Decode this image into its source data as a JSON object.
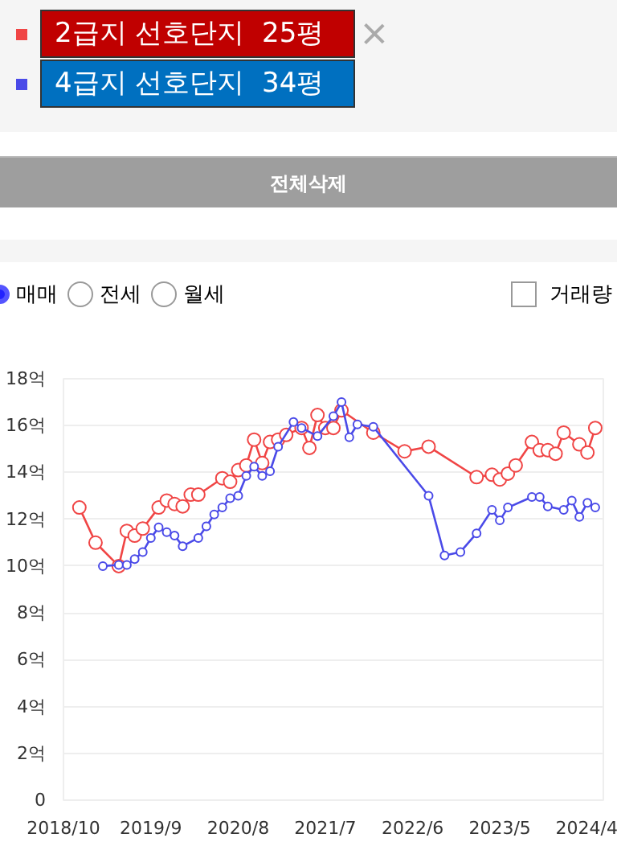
{
  "chart_data": {
    "type": "line",
    "legend": "top",
    "grid": "y",
    "marker": "circle",
    "line_style": "solid",
    "annotations": [
      "전체삭제",
      "매매",
      "전세",
      "월세",
      "거래량"
    ],
    "xlim": [
      "2018-10",
      "2024-06"
    ],
    "xticks": [
      {
        "value": "2018-10",
        "label": "2018/10"
      },
      {
        "value": "2019-09",
        "label": "2019/9"
      },
      {
        "value": "2020-08",
        "label": "2020/8"
      },
      {
        "value": "2021-07",
        "label": "2021/7"
      },
      {
        "value": "2022-06",
        "label": "2022/6"
      },
      {
        "value": "2023-05",
        "label": "2023/5"
      },
      {
        "value": "2024-04",
        "label": "2024/4"
      }
    ],
    "ylim": [
      0,
      18
    ],
    "yticks": [
      0,
      {
        "value": 2,
        "label": "2억"
      },
      {
        "value": 4,
        "label": "4억"
      },
      {
        "value": 6,
        "label": "6억"
      },
      {
        "value": 8,
        "label": "8억"
      },
      {
        "value": 10,
        "label": "10억"
      },
      {
        "value": 12,
        "label": "12억"
      },
      {
        "value": 14,
        "label": "14억"
      },
      {
        "value": 16,
        "label": "16억"
      },
      {
        "value": 18,
        "label": "18억"
      }
    ],
    "series": [
      {
        "name": "2급지 선호단지  25평",
        "color": "#f04545",
        "x": [
          "2018-12",
          "2019-02",
          "2019-05",
          "2019-06",
          "2019-07",
          "2019-08",
          "2019-10",
          "2019-11",
          "2019-12",
          "2020-01",
          "2020-02",
          "2020-03",
          "2020-06",
          "2020-07",
          "2020-08",
          "2020-09",
          "2020-10",
          "2020-11",
          "2020-12",
          "2021-01",
          "2021-02",
          "2021-04",
          "2021-05",
          "2021-06",
          "2021-07",
          "2021-08",
          "2021-09",
          "2022-01",
          "2022-05",
          "2022-08",
          "2023-02",
          "2023-04",
          "2023-05",
          "2023-06",
          "2023-07",
          "2023-09",
          "2023-10",
          "2023-11",
          "2023-12",
          "2024-01",
          "2024-03",
          "2024-04",
          "2024-05"
        ],
        "values": [
          12.5,
          11.0,
          10.0,
          11.5,
          11.3,
          11.6,
          12.5,
          12.8,
          12.65,
          12.55,
          13.05,
          13.05,
          13.75,
          13.6,
          14.1,
          14.3,
          15.4,
          14.4,
          15.3,
          15.4,
          15.6,
          15.9,
          15.05,
          16.45,
          15.9,
          15.9,
          16.65,
          15.7,
          14.9,
          15.1,
          13.8,
          13.9,
          13.7,
          13.95,
          14.3,
          15.3,
          14.95,
          14.95,
          14.8,
          15.7,
          15.2,
          14.85,
          15.9
        ]
      },
      {
        "name": "4급지 선호단지  34평",
        "color": "#4a4ae8",
        "x": [
          "2019-03",
          "2019-05",
          "2019-06",
          "2019-07",
          "2019-08",
          "2019-09",
          "2019-10",
          "2019-11",
          "2019-12",
          "2020-01",
          "2020-03",
          "2020-04",
          "2020-05",
          "2020-06",
          "2020-07",
          "2020-08",
          "2020-09",
          "2020-10",
          "2020-11",
          "2020-12",
          "2021-01",
          "2021-03",
          "2021-04",
          "2021-06",
          "2021-08",
          "2021-09",
          "2021-10",
          "2021-11",
          "2022-01",
          "2022-08",
          "2022-10",
          "2022-12",
          "2023-02",
          "2023-04",
          "2023-05",
          "2023-06",
          "2023-09",
          "2023-10",
          "2023-11",
          "2024-01",
          "2024-02",
          "2024-03",
          "2024-04",
          "2024-05"
        ],
        "values": [
          10.0,
          10.05,
          10.05,
          10.3,
          10.6,
          11.2,
          11.65,
          11.45,
          11.3,
          10.85,
          11.2,
          11.7,
          12.2,
          12.5,
          12.9,
          13.0,
          13.85,
          14.25,
          13.85,
          14.05,
          15.1,
          16.15,
          15.9,
          15.55,
          16.4,
          17.0,
          15.5,
          16.05,
          15.95,
          13.0,
          10.45,
          10.6,
          11.4,
          12.4,
          11.95,
          12.5,
          12.95,
          12.95,
          12.55,
          12.4,
          12.8,
          12.1,
          12.7,
          12.5
        ]
      }
    ]
  }
}
